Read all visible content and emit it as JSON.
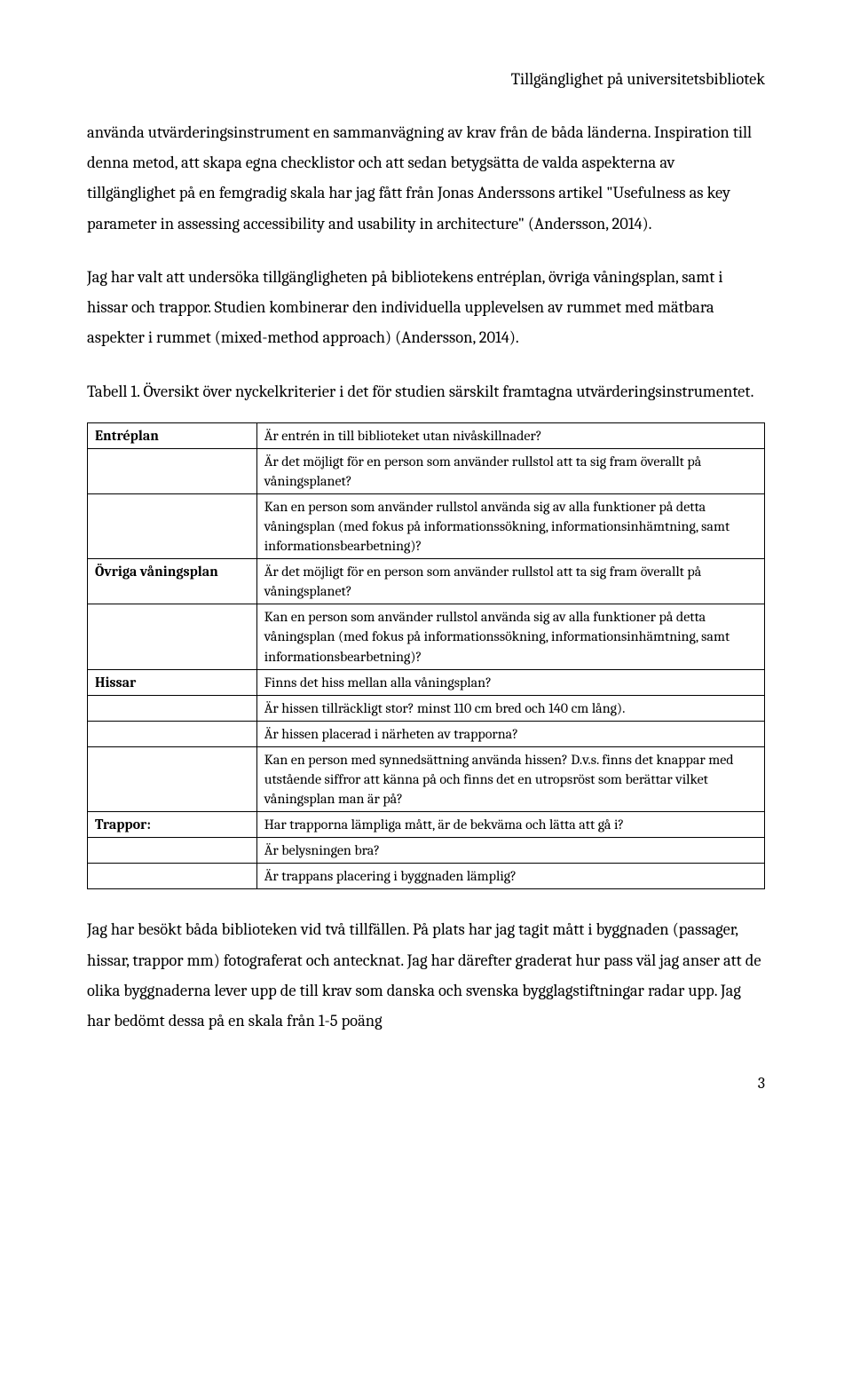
{
  "header": "Tillgänglighet på universitetsbibliotek",
  "para1": "använda utvärderingsinstrument en sammanvägning av krav från de båda länderna. Inspiration till denna metod, att skapa egna checklistor och att sedan betygsätta de valda aspekterna av tillgänglighet på en femgradig skala har jag fått från Jonas Anderssons artikel \"Usefulness as key parameter in assessing accessibility and usability in architecture\" (Andersson, 2014).",
  "para2": "Jag har valt att undersöka tillgängligheten på bibliotekens entréplan, övriga våningsplan, samt i hissar och trappor. Studien kombinerar den individuella upplevelsen av rummet med mätbara aspekter i rummet (mixed-method approach) (Andersson, 2014).",
  "caption": "Tabell 1. Översikt över nyckelkriterier i det för studien särskilt framtagna utvärderingsinstrumentet.",
  "table": {
    "rows": [
      {
        "left": "Entréplan",
        "right": "Är entrén in till biblioteket utan nivåskillnader?"
      },
      {
        "left": "",
        "right": "Är det möjligt för en person som använder rullstol att ta sig fram överallt på våningsplanet?"
      },
      {
        "left": "",
        "right": "Kan en person som använder rullstol använda sig av alla funktioner på detta våningsplan (med fokus på informationssökning, informationsinhämtning, samt informationsbearbetning)?"
      },
      {
        "left": "Övriga våningsplan",
        "right": "Är det möjligt för en person som använder rullstol att ta sig fram överallt på våningsplanet?"
      },
      {
        "left": "",
        "right": "Kan en person som använder rullstol använda sig av alla funktioner på detta våningsplan (med fokus på informationssökning, informationsinhämtning, samt informationsbearbetning)?"
      },
      {
        "left": "Hissar",
        "right": "Finns det hiss mellan alla våningsplan?"
      },
      {
        "left": "",
        "right": "Är hissen tillräckligt stor? minst 110 cm bred och 140 cm lång)."
      },
      {
        "left": "",
        "right": "Är hissen placerad i närheten av trapporna?"
      },
      {
        "left": "",
        "right": "Kan en person med synnedsättning använda hissen? D.v.s. finns det knappar med utstående siffror att känna på och finns det en utropsröst som berättar vilket våningsplan man är på?"
      },
      {
        "left": "Trappor:",
        "right": "Har trapporna lämpliga mått, är de bekväma och lätta att gå i?"
      },
      {
        "left": "",
        "right": "Är belysningen bra?"
      },
      {
        "left": "",
        "right": "Är trappans placering i byggnaden lämplig?"
      }
    ]
  },
  "para3": "Jag har besökt båda biblioteken vid två tillfällen. På plats har jag tagit mått i byggnaden (passager, hissar, trappor mm) fotograferat och antecknat. Jag har därefter graderat hur pass väl jag anser att de olika byggnaderna lever upp de till krav som danska och svenska bygglagstiftningar radar upp. Jag har bedömt dessa på en skala från 1-5 poäng",
  "pageNumber": "3"
}
